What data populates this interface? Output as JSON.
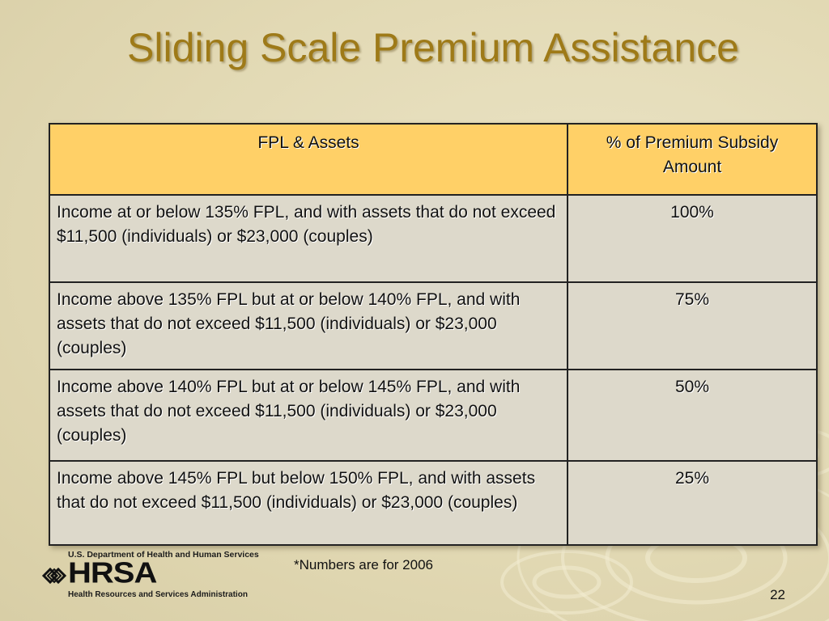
{
  "slide": {
    "title": "Sliding Scale Premium Assistance",
    "footnote": "*Numbers are for 2006",
    "page_number": "22"
  },
  "table": {
    "headers": [
      "FPL & Assets",
      "% of Premium Subsidy Amount"
    ],
    "rows": [
      {
        "condition": "Income at or below 135% FPL, and with assets that do not exceed $11,500 (individuals) or $23,000 (couples)",
        "percent": "100%"
      },
      {
        "condition": "Income above 135% FPL but at or below 140% FPL, and with assets that do not exceed $11,500 (individuals) or $23,000 (couples)",
        "percent": "75%"
      },
      {
        "condition": "Income above 140% FPL but at or below 145% FPL, and with assets that do not exceed $11,500 (individuals) or $23,000 (couples)",
        "percent": "50%"
      },
      {
        "condition": "Income above 145% FPL but below 150% FPL, and with assets that do not exceed $11,500 (individuals) or $23,000 (couples)",
        "percent": "25%"
      }
    ]
  },
  "logo": {
    "department": "U.S. Department of Health and Human Services",
    "wordmark": "HRSA",
    "subtitle": "Health Resources and Services Administration",
    "icon": "hrsa-knot-icon"
  },
  "colors": {
    "title": "#9e7a18",
    "header_fill": "#ffd067",
    "cell_fill": "#ddd9cb",
    "background": "#e4dcba"
  }
}
